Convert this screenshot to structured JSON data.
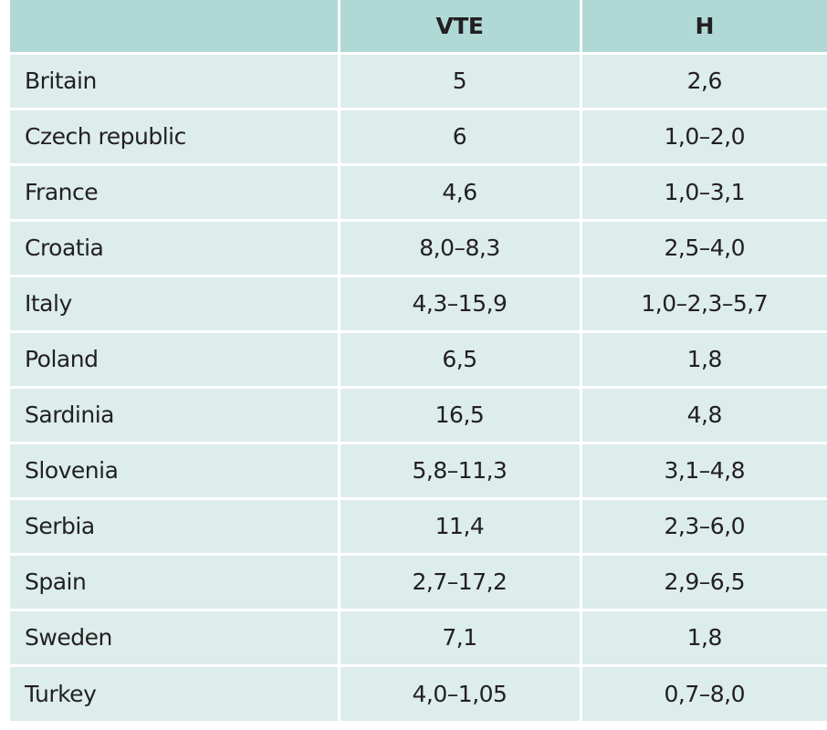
{
  "table": {
    "headers": [
      "",
      "VTE",
      "H"
    ],
    "rows": [
      {
        "country": "Britain",
        "vte": "5",
        "h": "2,6"
      },
      {
        "country": "Czech republic",
        "vte": "6",
        "h": "1,0–2,0"
      },
      {
        "country": "France",
        "vte": "4,6",
        "h": "1,0–3,1"
      },
      {
        "country": "Croatia",
        "vte": "8,0–8,3",
        "h": "2,5–4,0"
      },
      {
        "country": "Italy",
        "vte": "4,3–15,9",
        "h": "1,0–2,3–5,7"
      },
      {
        "country": "Poland",
        "vte": "6,5",
        "h": "1,8"
      },
      {
        "country": "Sardinia",
        "vte": "16,5",
        "h": "4,8"
      },
      {
        "country": "Slovenia",
        "vte": "5,8–11,3",
        "h": "3,1–4,8"
      },
      {
        "country": "Serbia",
        "vte": "11,4",
        "h": "2,3–6,0"
      },
      {
        "country": "Spain",
        "vte": "2,7–17,2",
        "h": "2,9–6,5"
      },
      {
        "country": "Sweden",
        "vte": "7,1",
        "h": "1,8"
      },
      {
        "country": "Turkey",
        "vte": "4,0–1,05",
        "h": "0,7–8,0"
      }
    ]
  },
  "colors": {
    "header_bg": "#b0d9d6",
    "row_bg": "#dcedeb",
    "text": "#231f20",
    "grid_lines": "#ffffff"
  }
}
